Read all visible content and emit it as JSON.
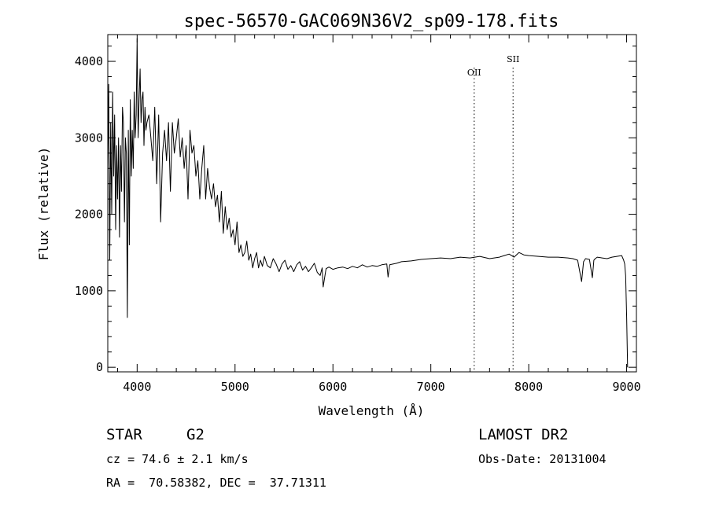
{
  "chart_data": {
    "type": "line",
    "title": "spec-56570-GAC069N36V2_sp09-178.fits",
    "xlabel": "Wavelength (Å)",
    "ylabel": "Flux (relative)",
    "xlim": [
      3700,
      9100
    ],
    "ylim": [
      -60,
      4350
    ],
    "xticks": [
      "4000",
      "5000",
      "6000",
      "7000",
      "8000",
      "9000"
    ],
    "yticks": [
      "0",
      "1000",
      "2000",
      "3000",
      "4000"
    ],
    "grid": false,
    "series": [
      {
        "x": [
          3700,
          3710,
          3720,
          3730,
          3740,
          3750,
          3760,
          3770,
          3780,
          3790,
          3800,
          3810,
          3820,
          3830,
          3840,
          3850,
          3860,
          3870,
          3880,
          3890,
          3900,
          3910,
          3920,
          3930,
          3940,
          3950,
          3960,
          3970,
          3980,
          3990,
          4000,
          4010,
          4020,
          4030,
          4040,
          4050,
          4060,
          4070,
          4080,
          4090,
          4100,
          4120,
          4140,
          4160,
          4180,
          4200,
          4220,
          4240,
          4260,
          4280,
          4300,
          4320,
          4340,
          4360,
          4380,
          4400,
          4420,
          4440,
          4460,
          4480,
          4500,
          4520,
          4540,
          4560,
          4580,
          4600,
          4620,
          4640,
          4660,
          4680,
          4700,
          4720,
          4740,
          4760,
          4780,
          4800,
          4820,
          4840,
          4860,
          4880,
          4900,
          4920,
          4940,
          4960,
          4980,
          5000,
          5020,
          5040,
          5060,
          5080,
          5100,
          5120,
          5140,
          5160,
          5180,
          5200,
          5220,
          5240,
          5260,
          5280,
          5300,
          5330,
          5360,
          5390,
          5420,
          5450,
          5480,
          5510,
          5540,
          5570,
          5600,
          5630,
          5660,
          5690,
          5720,
          5750,
          5780,
          5810,
          5840,
          5870,
          5890,
          5900,
          5930,
          5960,
          6000,
          6050,
          6100,
          6150,
          6200,
          6250,
          6300,
          6350,
          6400,
          6450,
          6500,
          6550,
          6563,
          6580,
          6650,
          6700,
          6800,
          6900,
          7000,
          7100,
          7200,
          7300,
          7400,
          7500,
          7600,
          7700,
          7750,
          7800,
          7850,
          7900,
          7950,
          8000,
          8100,
          8200,
          8300,
          8400,
          8450,
          8500,
          8540,
          8560,
          8580,
          8620,
          8650,
          8665,
          8680,
          8700,
          8750,
          8800,
          8850,
          8900,
          8950,
          8970,
          8980,
          8990,
          9000,
          9010
        ],
        "values": [
          2600,
          3700,
          1400,
          3200,
          2000,
          3600,
          2500,
          3300,
          1800,
          2900,
          2200,
          3000,
          1700,
          2900,
          2300,
          3400,
          3200,
          1900,
          3000,
          2800,
          650,
          3100,
          1600,
          3500,
          2500,
          3100,
          2600,
          3600,
          3000,
          3300,
          4300,
          3000,
          3500,
          3900,
          3200,
          3500,
          3600,
          2900,
          3400,
          3100,
          3200,
          3300,
          3000,
          2700,
          3400,
          2400,
          3300,
          1900,
          2800,
          3100,
          2700,
          3200,
          2300,
          3200,
          2800,
          3000,
          3250,
          2750,
          3000,
          2600,
          2900,
          2200,
          3100,
          2800,
          2900,
          2500,
          2700,
          2200,
          2600,
          2900,
          2200,
          2600,
          2350,
          2200,
          2400,
          2100,
          2250,
          1900,
          2300,
          1750,
          2100,
          1800,
          1950,
          1700,
          1800,
          1600,
          1900,
          1500,
          1600,
          1450,
          1500,
          1650,
          1400,
          1480,
          1300,
          1420,
          1500,
          1300,
          1400,
          1320,
          1450,
          1330,
          1300,
          1420,
          1350,
          1250,
          1350,
          1400,
          1280,
          1330,
          1250,
          1340,
          1380,
          1270,
          1320,
          1250,
          1300,
          1360,
          1240,
          1200,
          1300,
          1050,
          1290,
          1310,
          1280,
          1300,
          1310,
          1290,
          1320,
          1300,
          1340,
          1310,
          1330,
          1320,
          1340,
          1350,
          1180,
          1340,
          1360,
          1380,
          1390,
          1410,
          1420,
          1430,
          1420,
          1440,
          1430,
          1450,
          1420,
          1440,
          1460,
          1480,
          1440,
          1500,
          1470,
          1460,
          1450,
          1440,
          1440,
          1430,
          1420,
          1400,
          1120,
          1380,
          1420,
          1410,
          1170,
          1400,
          1420,
          1440,
          1430,
          1420,
          1440,
          1450,
          1460,
          1400,
          1350,
          1200,
          650,
          0
        ]
      }
    ],
    "annotations": [
      {
        "text": "OII",
        "x": 7443
      },
      {
        "text": "SII",
        "x": 7840
      }
    ]
  },
  "info": {
    "object_class": "STAR",
    "subclass": "G2",
    "survey": "LAMOST DR2",
    "cz": "cz = 74.6 ± 2.1 km/s",
    "obs_date": "Obs-Date: 20131004",
    "coords": "RA =  70.58382, DEC =  37.71311"
  }
}
